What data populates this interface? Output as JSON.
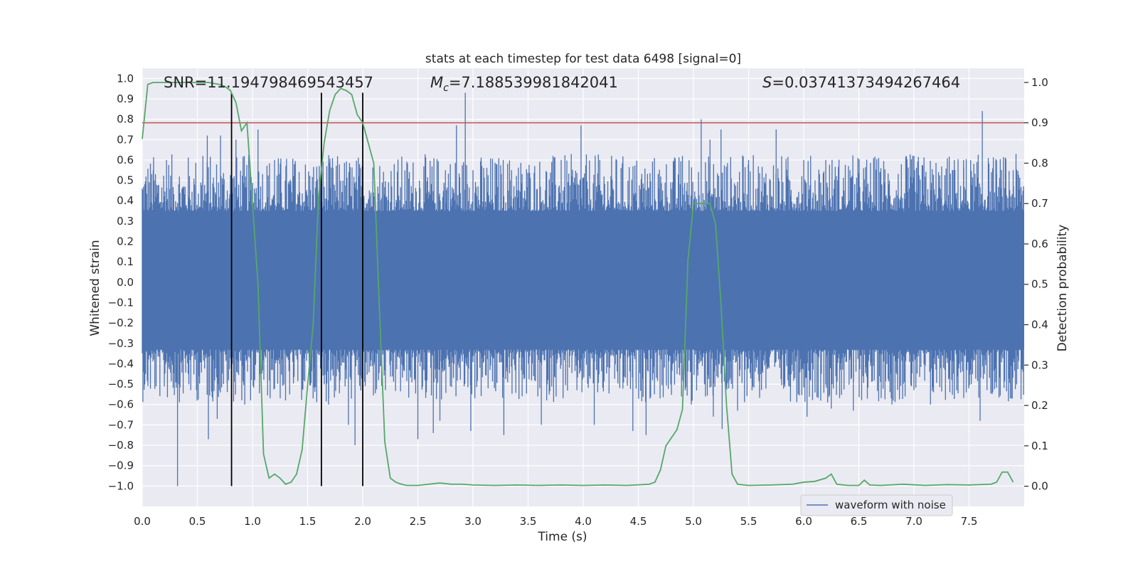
{
  "chart_data": {
    "type": "line",
    "title": "stats at each timestep for test data 6498 [signal=0]",
    "xlabel": "Time (s)",
    "ylabel": "Whitened strain",
    "ylabel_right": "Detection probability",
    "xlim": [
      0.0,
      8.0
    ],
    "ylim": [
      -1.1,
      1.05
    ],
    "ylim_right": [
      -0.05,
      1.035
    ],
    "x_ticks": [
      0.0,
      0.5,
      1.0,
      1.5,
      2.0,
      2.5,
      3.0,
      3.5,
      4.0,
      4.5,
      5.0,
      5.5,
      6.0,
      6.5,
      7.0,
      7.5
    ],
    "x_tick_labels": [
      "0.0",
      "0.5",
      "1.0",
      "1.5",
      "2.0",
      "2.5",
      "3.0",
      "3.5",
      "4.0",
      "4.5",
      "5.0",
      "5.5",
      "6.0",
      "6.5",
      "7.0",
      "7.5"
    ],
    "y_ticks": [
      1.0,
      0.9,
      0.8,
      0.7,
      0.6,
      0.5,
      0.4,
      0.3,
      0.2,
      0.1,
      0.0,
      -0.1,
      -0.2,
      -0.3,
      -0.4,
      -0.5,
      -0.6,
      -0.7,
      -0.8,
      -0.9,
      -1.0
    ],
    "y_tick_labels": [
      "1.0",
      "0.9",
      "0.8",
      "0.7",
      "0.6",
      "0.5",
      "0.4",
      "0.3",
      "0.2",
      "0.1",
      "0.0",
      "−0.1",
      "−0.2",
      "−0.3",
      "−0.4",
      "−0.5",
      "−0.6",
      "−0.7",
      "−0.8",
      "−0.9",
      "−1.0"
    ],
    "y_right_ticks": [
      1.0,
      0.9,
      0.8,
      0.7,
      0.6,
      0.5,
      0.4,
      0.3,
      0.2,
      0.1,
      0.0
    ],
    "y_right_tick_labels": [
      "1.0",
      "0.9",
      "0.8",
      "0.7",
      "0.6",
      "0.5",
      "0.4",
      "0.3",
      "0.2",
      "0.1",
      "0.0"
    ],
    "annotations": {
      "snr": "SNR=11.194798469543457",
      "mc_symbol": "M",
      "mc_subscript": "c",
      "mc_value": "=7.188539981842041",
      "s_symbol": "S",
      "s_value": "=0.03741373494267464"
    },
    "legend": {
      "label": "waveform with noise",
      "position": "lower-right"
    },
    "threshold_right": 0.9,
    "vertical_lines_x": [
      0.81,
      1.625,
      2.0
    ],
    "vertical_lines_ymin": -1.0,
    "vertical_lines_ymax": 0.93,
    "waveform": {
      "name": "waveform with noise",
      "duration": 8.0,
      "band_low": -0.33,
      "band_high": 0.35,
      "spikes": [
        [
          0.32,
          -1.0
        ],
        [
          0.03,
          -0.45
        ],
        [
          0.1,
          0.55
        ],
        [
          0.22,
          0.6
        ],
        [
          0.55,
          0.62
        ],
        [
          0.6,
          -0.77
        ],
        [
          0.59,
          0.72
        ],
        [
          0.68,
          -0.67
        ],
        [
          0.71,
          0.72
        ],
        [
          0.77,
          -0.5
        ],
        [
          0.85,
          0.7
        ],
        [
          0.93,
          -0.6
        ],
        [
          1.05,
          0.75
        ],
        [
          1.02,
          -0.48
        ],
        [
          1.2,
          0.6
        ],
        [
          1.3,
          -0.58
        ],
        [
          1.38,
          0.58
        ],
        [
          1.55,
          -0.57
        ],
        [
          1.62,
          0.5
        ],
        [
          1.73,
          0.56
        ],
        [
          1.69,
          -0.6
        ],
        [
          1.82,
          0.5
        ],
        [
          1.93,
          -0.8
        ],
        [
          1.96,
          0.57
        ],
        [
          1.87,
          -0.7
        ],
        [
          2.06,
          0.45
        ],
        [
          2.5,
          -0.77
        ],
        [
          2.64,
          -0.74
        ],
        [
          2.7,
          -0.68
        ],
        [
          2.75,
          0.55
        ],
        [
          2.85,
          0.77
        ],
        [
          2.93,
          0.93
        ],
        [
          2.98,
          -0.73
        ],
        [
          3.0,
          0.55
        ],
        [
          3.28,
          -0.75
        ],
        [
          3.35,
          0.55
        ],
        [
          3.62,
          -0.7
        ],
        [
          3.8,
          0.6
        ],
        [
          3.98,
          0.77
        ],
        [
          4.1,
          -0.7
        ],
        [
          4.15,
          0.6
        ],
        [
          4.45,
          -0.73
        ],
        [
          4.57,
          -0.75
        ],
        [
          4.72,
          0.45
        ],
        [
          4.9,
          0.62
        ],
        [
          4.98,
          -0.6
        ],
        [
          5.07,
          0.8
        ],
        [
          5.1,
          -0.5
        ],
        [
          5.15,
          0.7
        ],
        [
          5.18,
          -0.66
        ],
        [
          5.25,
          0.75
        ],
        [
          5.26,
          -0.72
        ],
        [
          5.4,
          -0.63
        ],
        [
          5.5,
          0.6
        ],
        [
          5.75,
          0.75
        ],
        [
          5.95,
          -0.55
        ],
        [
          6.0,
          0.6
        ],
        [
          6.03,
          -0.66
        ],
        [
          6.2,
          0.6
        ],
        [
          6.25,
          -0.62
        ],
        [
          6.42,
          0.55
        ],
        [
          6.45,
          -0.63
        ],
        [
          6.7,
          0.56
        ],
        [
          6.8,
          -0.6
        ],
        [
          7.0,
          0.62
        ],
        [
          7.15,
          -0.6
        ],
        [
          7.2,
          0.58
        ],
        [
          7.45,
          0.6
        ],
        [
          7.52,
          -0.5
        ],
        [
          7.62,
          0.84
        ],
        [
          7.6,
          -0.68
        ],
        [
          7.75,
          0.53
        ],
        [
          7.9,
          0.55
        ]
      ]
    },
    "series": [
      {
        "name": "detection probability",
        "axis": "right",
        "x": [
          0.0,
          0.05,
          0.1,
          0.2,
          0.3,
          0.4,
          0.5,
          0.6,
          0.7,
          0.75,
          0.8,
          0.85,
          0.9,
          0.95,
          1.0,
          1.05,
          1.1,
          1.15,
          1.2,
          1.25,
          1.3,
          1.35,
          1.4,
          1.45,
          1.5,
          1.55,
          1.6,
          1.65,
          1.7,
          1.75,
          1.8,
          1.85,
          1.9,
          1.95,
          2.0,
          2.05,
          2.1,
          2.15,
          2.2,
          2.25,
          2.3,
          2.35,
          2.4,
          2.5,
          2.6,
          2.7,
          2.8,
          2.9,
          3.0,
          3.2,
          3.4,
          3.6,
          3.8,
          4.0,
          4.2,
          4.4,
          4.6,
          4.65,
          4.7,
          4.75,
          4.8,
          4.85,
          4.9,
          4.95,
          5.0,
          5.05,
          5.1,
          5.15,
          5.2,
          5.25,
          5.3,
          5.35,
          5.4,
          5.5,
          5.7,
          5.9,
          6.0,
          6.1,
          6.2,
          6.25,
          6.3,
          6.4,
          6.5,
          6.55,
          6.6,
          6.7,
          6.9,
          7.1,
          7.3,
          7.5,
          7.7,
          7.75,
          7.8,
          7.85,
          7.9
        ],
        "values": [
          0.86,
          0.995,
          1.0,
          1.0,
          1.0,
          1.0,
          1.0,
          1.0,
          0.995,
          0.99,
          0.98,
          0.95,
          0.88,
          0.9,
          0.7,
          0.5,
          0.08,
          0.02,
          0.03,
          0.02,
          0.005,
          0.01,
          0.03,
          0.09,
          0.25,
          0.4,
          0.72,
          0.85,
          0.93,
          0.97,
          0.985,
          0.98,
          0.97,
          0.92,
          0.9,
          0.85,
          0.8,
          0.45,
          0.11,
          0.02,
          0.01,
          0.005,
          0.002,
          0.002,
          0.005,
          0.008,
          0.005,
          0.005,
          0.003,
          0.002,
          0.003,
          0.002,
          0.003,
          0.002,
          0.003,
          0.002,
          0.005,
          0.01,
          0.04,
          0.1,
          0.12,
          0.14,
          0.19,
          0.56,
          0.7,
          0.7,
          0.7,
          0.7,
          0.65,
          0.45,
          0.2,
          0.03,
          0.005,
          0.002,
          0.003,
          0.005,
          0.01,
          0.012,
          0.02,
          0.03,
          0.005,
          0.002,
          0.002,
          0.015,
          0.003,
          0.002,
          0.005,
          0.002,
          0.004,
          0.003,
          0.005,
          0.01,
          0.035,
          0.035,
          0.01
        ]
      }
    ]
  },
  "colors": {
    "axes_bg": "#EAEAF2",
    "grid": "#FFFFFF",
    "waveform": "#4C72B0",
    "probability": "#55A868",
    "threshold": "#C44E52",
    "vlines": "#000000"
  }
}
